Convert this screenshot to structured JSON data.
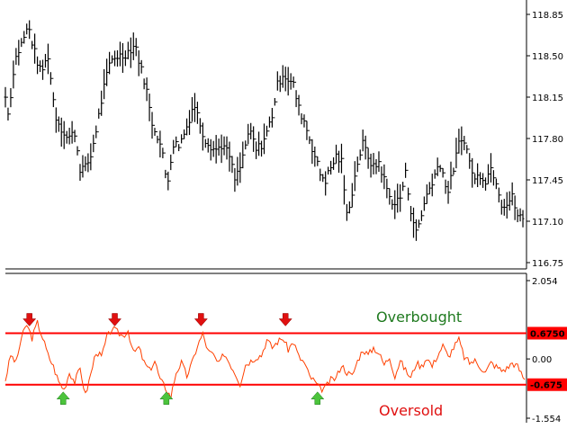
{
  "chart_data": [
    {
      "type": "ohlc",
      "panel": "price",
      "ylim": [
        116.75,
        118.85
      ],
      "y_ticks": [
        "118.85",
        "118.50",
        "118.15",
        "117.80",
        "117.45",
        "117.10",
        "116.75"
      ],
      "y_tick_values": [
        118.85,
        118.5,
        118.15,
        117.8,
        117.45,
        117.1,
        116.75
      ],
      "bar_color": "#000000",
      "points": [
        [
          0,
          118.15
        ],
        [
          4,
          118.0
        ],
        [
          10,
          118.45
        ],
        [
          18,
          118.6
        ],
        [
          26,
          118.75
        ],
        [
          32,
          118.55
        ],
        [
          40,
          118.35
        ],
        [
          48,
          118.5
        ],
        [
          56,
          118.0
        ],
        [
          62,
          117.9
        ],
        [
          70,
          117.8
        ],
        [
          78,
          117.85
        ],
        [
          84,
          117.55
        ],
        [
          90,
          117.55
        ],
        [
          96,
          117.65
        ],
        [
          104,
          117.95
        ],
        [
          110,
          118.2
        ],
        [
          118,
          118.45
        ],
        [
          124,
          118.5
        ],
        [
          132,
          118.5
        ],
        [
          140,
          118.55
        ],
        [
          146,
          118.6
        ],
        [
          152,
          118.4
        ],
        [
          158,
          118.25
        ],
        [
          164,
          117.95
        ],
        [
          170,
          117.85
        ],
        [
          176,
          117.7
        ],
        [
          182,
          117.4
        ],
        [
          188,
          117.75
        ],
        [
          196,
          117.75
        ],
        [
          204,
          117.9
        ],
        [
          212,
          118.1
        ],
        [
          218,
          117.95
        ],
        [
          224,
          117.8
        ],
        [
          230,
          117.75
        ],
        [
          236,
          117.7
        ],
        [
          244,
          117.75
        ],
        [
          252,
          117.65
        ],
        [
          258,
          117.45
        ],
        [
          264,
          117.55
        ],
        [
          270,
          117.75
        ],
        [
          276,
          117.85
        ],
        [
          282,
          117.7
        ],
        [
          288,
          117.75
        ],
        [
          294,
          117.85
        ],
        [
          300,
          118.0
        ],
        [
          306,
          118.25
        ],
        [
          312,
          118.35
        ],
        [
          318,
          118.3
        ],
        [
          324,
          118.25
        ],
        [
          330,
          118.05
        ],
        [
          336,
          117.95
        ],
        [
          342,
          117.8
        ],
        [
          348,
          117.65
        ],
        [
          354,
          117.5
        ],
        [
          360,
          117.45
        ],
        [
          366,
          117.55
        ],
        [
          372,
          117.65
        ],
        [
          378,
          117.6
        ],
        [
          384,
          117.15
        ],
        [
          390,
          117.35
        ],
        [
          396,
          117.6
        ],
        [
          402,
          117.75
        ],
        [
          408,
          117.65
        ],
        [
          414,
          117.55
        ],
        [
          420,
          117.6
        ],
        [
          426,
          117.45
        ],
        [
          432,
          117.3
        ],
        [
          438,
          117.25
        ],
        [
          444,
          117.3
        ],
        [
          450,
          117.5
        ],
        [
          456,
          117.2
        ],
        [
          462,
          117.0
        ],
        [
          468,
          117.15
        ],
        [
          474,
          117.35
        ],
        [
          480,
          117.4
        ],
        [
          486,
          117.6
        ],
        [
          492,
          117.5
        ],
        [
          498,
          117.35
        ],
        [
          504,
          117.55
        ],
        [
          510,
          117.75
        ],
        [
          516,
          117.8
        ],
        [
          522,
          117.6
        ],
        [
          528,
          117.45
        ],
        [
          534,
          117.5
        ],
        [
          540,
          117.45
        ],
        [
          546,
          117.55
        ],
        [
          552,
          117.45
        ],
        [
          558,
          117.25
        ],
        [
          564,
          117.25
        ],
        [
          570,
          117.3
        ],
        [
          576,
          117.15
        ],
        [
          584,
          117.1
        ]
      ]
    },
    {
      "type": "line",
      "panel": "oscillator",
      "ylim": [
        -1.554,
        2.054
      ],
      "y_ticks": [
        "2.054",
        "0.00",
        "-1.554"
      ],
      "y_tick_values": [
        2.054,
        0.0,
        -1.554
      ],
      "line_color": "#ff4000",
      "levels": [
        {
          "value": 0.675,
          "label": "0.6750",
          "color": "#ff0000"
        },
        {
          "value": -0.675,
          "label": "-0.675",
          "color": "#ff0000"
        }
      ],
      "annotations": {
        "overbought": "Overbought",
        "oversold": "Oversold"
      },
      "sell_signals_x": [
        27,
        123,
        220,
        315
      ],
      "buy_signals_x": [
        65,
        181,
        351
      ],
      "points": [
        [
          0,
          -0.55
        ],
        [
          6,
          0.1
        ],
        [
          12,
          -0.1
        ],
        [
          18,
          0.55
        ],
        [
          24,
          0.9
        ],
        [
          30,
          0.55
        ],
        [
          36,
          0.95
        ],
        [
          42,
          0.55
        ],
        [
          48,
          0.1
        ],
        [
          54,
          -0.2
        ],
        [
          60,
          -0.6
        ],
        [
          66,
          -0.8
        ],
        [
          72,
          -0.35
        ],
        [
          78,
          -0.6
        ],
        [
          84,
          -0.25
        ],
        [
          90,
          -0.95
        ],
        [
          96,
          -0.4
        ],
        [
          102,
          0.2
        ],
        [
          108,
          0.05
        ],
        [
          114,
          0.55
        ],
        [
          120,
          0.8
        ],
        [
          126,
          0.7
        ],
        [
          132,
          0.6
        ],
        [
          138,
          0.75
        ],
        [
          144,
          0.15
        ],
        [
          150,
          0.3
        ],
        [
          156,
          -0.1
        ],
        [
          162,
          -0.3
        ],
        [
          168,
          -0.05
        ],
        [
          174,
          -0.55
        ],
        [
          180,
          -0.75
        ],
        [
          186,
          -1.0
        ],
        [
          192,
          -0.35
        ],
        [
          198,
          -0.1
        ],
        [
          204,
          -0.45
        ],
        [
          210,
          -0.1
        ],
        [
          216,
          0.35
        ],
        [
          222,
          0.65
        ],
        [
          228,
          0.2
        ],
        [
          234,
          0.1
        ],
        [
          240,
          -0.15
        ],
        [
          246,
          0.15
        ],
        [
          252,
          -0.1
        ],
        [
          258,
          -0.35
        ],
        [
          264,
          -0.65
        ],
        [
          270,
          -0.15
        ],
        [
          276,
          -0.05
        ],
        [
          282,
          0.05
        ],
        [
          288,
          0.1
        ],
        [
          294,
          0.5
        ],
        [
          300,
          0.3
        ],
        [
          306,
          0.45
        ],
        [
          312,
          0.55
        ],
        [
          318,
          0.25
        ],
        [
          324,
          0.45
        ],
        [
          330,
          0.05
        ],
        [
          336,
          -0.1
        ],
        [
          342,
          -0.45
        ],
        [
          348,
          -0.6
        ],
        [
          354,
          -0.8
        ],
        [
          360,
          -0.75
        ],
        [
          366,
          -0.55
        ],
        [
          372,
          -0.5
        ],
        [
          378,
          -0.15
        ],
        [
          384,
          -0.35
        ],
        [
          390,
          -0.45
        ],
        [
          396,
          -0.05
        ],
        [
          402,
          0.25
        ],
        [
          408,
          0.1
        ],
        [
          414,
          0.3
        ],
        [
          420,
          0.15
        ],
        [
          426,
          -0.15
        ],
        [
          432,
          0.05
        ],
        [
          438,
          -0.45
        ],
        [
          444,
          -0.05
        ],
        [
          450,
          -0.3
        ],
        [
          456,
          -0.5
        ],
        [
          462,
          -0.1
        ],
        [
          468,
          -0.2
        ],
        [
          474,
          0.05
        ],
        [
          480,
          -0.2
        ],
        [
          486,
          0.1
        ],
        [
          492,
          0.35
        ],
        [
          498,
          0.05
        ],
        [
          504,
          0.3
        ],
        [
          510,
          0.5
        ],
        [
          516,
          0.05
        ],
        [
          522,
          -0.1
        ],
        [
          528,
          -0.05
        ],
        [
          534,
          -0.2
        ],
        [
          540,
          -0.35
        ],
        [
          546,
          -0.1
        ],
        [
          552,
          -0.2
        ],
        [
          558,
          -0.3
        ],
        [
          564,
          -0.25
        ],
        [
          570,
          -0.1
        ],
        [
          576,
          -0.2
        ],
        [
          584,
          -0.55
        ]
      ]
    }
  ]
}
